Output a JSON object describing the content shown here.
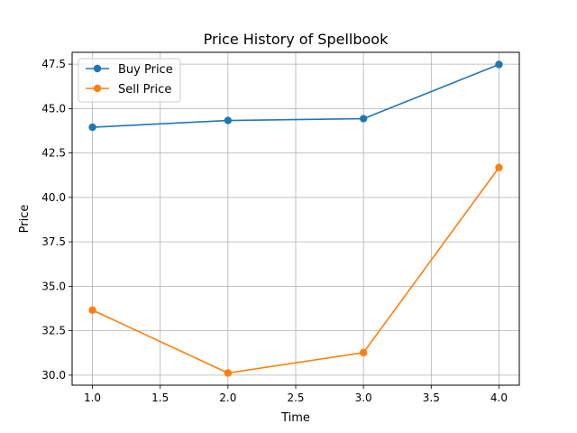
{
  "chart_data": {
    "type": "line",
    "title": "Price History of Spellbook",
    "xlabel": "Time",
    "ylabel": "Price",
    "x": [
      1.0,
      2.0,
      3.0,
      4.0
    ],
    "xlim": [
      0.85,
      4.15
    ],
    "ylim": [
      29.435,
      48.165
    ],
    "xticks": [
      1.0,
      1.5,
      2.0,
      2.5,
      3.0,
      3.5,
      4.0
    ],
    "xtick_labels": [
      "1.0",
      "1.5",
      "2.0",
      "2.5",
      "3.0",
      "3.5",
      "4.0"
    ],
    "yticks": [
      30.0,
      32.5,
      35.0,
      37.5,
      40.0,
      42.5,
      45.0,
      47.5
    ],
    "ytick_labels": [
      "30.0",
      "32.5",
      "35.0",
      "37.5",
      "40.0",
      "42.5",
      "45.0",
      "47.5"
    ],
    "grid": true,
    "legend_position": "top-left",
    "series": [
      {
        "name": "Buy Price",
        "color": "#1f77b4",
        "marker": "circle",
        "values": [
          43.95,
          44.33,
          44.43,
          47.48
        ]
      },
      {
        "name": "Sell Price",
        "color": "#ff7f0e",
        "marker": "circle",
        "values": [
          33.66,
          30.12,
          31.27,
          41.68
        ]
      }
    ]
  }
}
